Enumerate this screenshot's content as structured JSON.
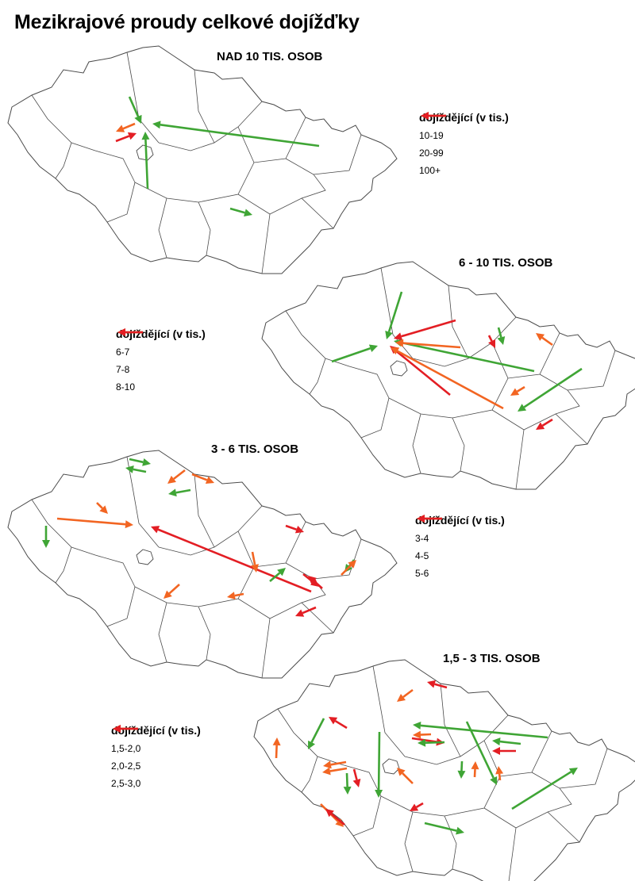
{
  "title": "Mezikrajové proudy celkové dojížďky",
  "colors": {
    "class1": "#3fa535",
    "class2": "#f26522",
    "class3": "#e31e24",
    "border": "#4a4a4a"
  },
  "panels": [
    {
      "heading": "NAD 10 TIS. OSOB",
      "legend_title": "dojíždějící  (v tis.)",
      "legend": [
        {
          "label": "10-19",
          "color": "#3fa535"
        },
        {
          "label": "20-99",
          "color": "#f26522"
        },
        {
          "label": "100+",
          "color": "#e31e24"
        }
      ],
      "flows": [
        {
          "from": "Středočeský (sever)",
          "to": "Praha",
          "class": 1
        },
        {
          "from": "Středočeský (jih)",
          "to": "Praha",
          "class": 1
        },
        {
          "from": "Moravskoslezský",
          "to": "Praha",
          "class": 1
        },
        {
          "from": "Praha",
          "to": "Středočeský (západ)",
          "class": 2
        },
        {
          "from": "Středočeský (západ)",
          "to": "Praha",
          "class": 3
        },
        {
          "from": "Vysočina",
          "to": "Jihomoravský",
          "class": 1
        }
      ]
    },
    {
      "heading": "6 - 10 TIS. OSOB",
      "legend_title": "dojíždějící  (v tis.)",
      "legend": [
        {
          "label": "6-7",
          "color": "#3fa535"
        },
        {
          "label": "7-8",
          "color": "#f26522"
        },
        {
          "label": "8-10",
          "color": "#e31e24"
        }
      ],
      "flows": []
    },
    {
      "heading": "3 - 6 TIS. OSOB",
      "legend_title": "dojíždějící  (v tis.)",
      "legend": [
        {
          "label": "3-4",
          "color": "#3fa535"
        },
        {
          "label": "4-5",
          "color": "#f26522"
        },
        {
          "label": "5-6",
          "color": "#e31e24"
        }
      ],
      "flows": []
    },
    {
      "heading": "1,5 - 3 TIS. OSOB",
      "legend_title": "dojíždějící  (v tis.)",
      "legend": [
        {
          "label": "1,5-2,0",
          "color": "#3fa535"
        },
        {
          "label": "2,0-2,5",
          "color": "#f26522"
        },
        {
          "label": "2,5-3,0",
          "color": "#e31e24"
        }
      ],
      "flows": []
    }
  ]
}
